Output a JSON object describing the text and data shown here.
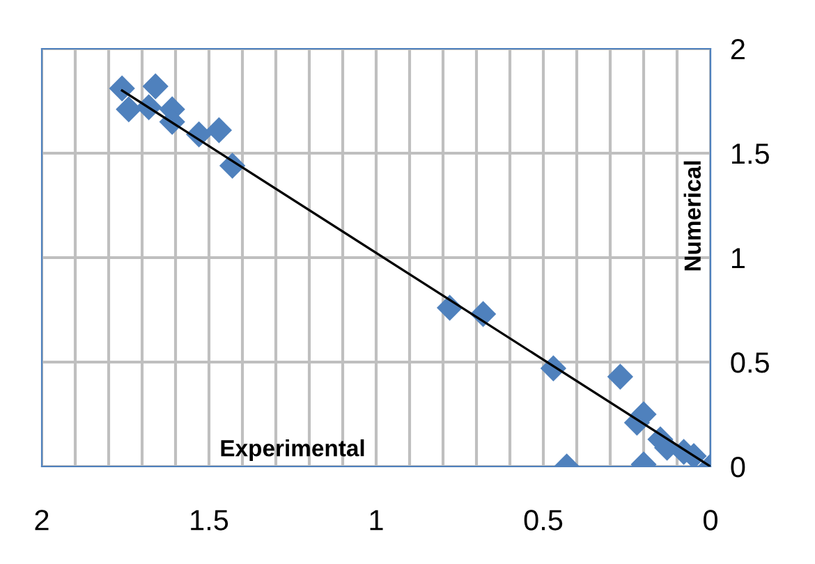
{
  "chart_data": {
    "type": "scatter",
    "xlabel": "Experimental",
    "ylabel": "Numerical",
    "grid": true,
    "legend": false,
    "xlim": [
      2,
      0
    ],
    "ylim": [
      0,
      2
    ],
    "xticks": [
      2,
      {
        "value": 1.9,
        "label": null
      },
      {
        "value": 1.8,
        "label": null
      },
      {
        "value": 1.7,
        "label": null
      },
      {
        "value": 1.6,
        "label": null
      },
      1.5,
      {
        "value": 1.4,
        "label": null
      },
      {
        "value": 1.3,
        "label": null
      },
      {
        "value": 1.2,
        "label": null
      },
      {
        "value": 1.1,
        "label": null
      },
      1,
      {
        "value": 0.9,
        "label": null
      },
      {
        "value": 0.8,
        "label": null
      },
      {
        "value": 0.7,
        "label": null
      },
      {
        "value": 0.6,
        "label": null
      },
      0.5,
      {
        "value": 0.4,
        "label": null
      },
      {
        "value": 0.3,
        "label": null
      },
      {
        "value": 0.2,
        "label": null
      },
      {
        "value": 0.1,
        "label": null
      },
      0
    ],
    "yticks": [
      0,
      0.5,
      1,
      1.5,
      2
    ],
    "series": [
      {
        "marker": "diamond",
        "color": "#4f81bd",
        "x": [
          1.76,
          1.74,
          1.66,
          1.68,
          1.61,
          1.61,
          1.53,
          1.47,
          1.43,
          0.78,
          0.68,
          0.47,
          0.27,
          0.2,
          0.22,
          0.43,
          0.2,
          0.15,
          0.13,
          0.08,
          0.05,
          0
        ],
        "values": [
          1.81,
          1.71,
          1.82,
          1.72,
          1.71,
          1.65,
          1.59,
          1.61,
          1.44,
          0.76,
          0.73,
          0.47,
          0.43,
          0.25,
          0.21,
          0,
          0.01,
          0.13,
          0.09,
          0.07,
          0.05,
          0
        ]
      },
      {
        "type": "line",
        "color": "#000000",
        "x": [
          1.76,
          0
        ],
        "values": [
          1.8,
          0
        ]
      }
    ]
  }
}
